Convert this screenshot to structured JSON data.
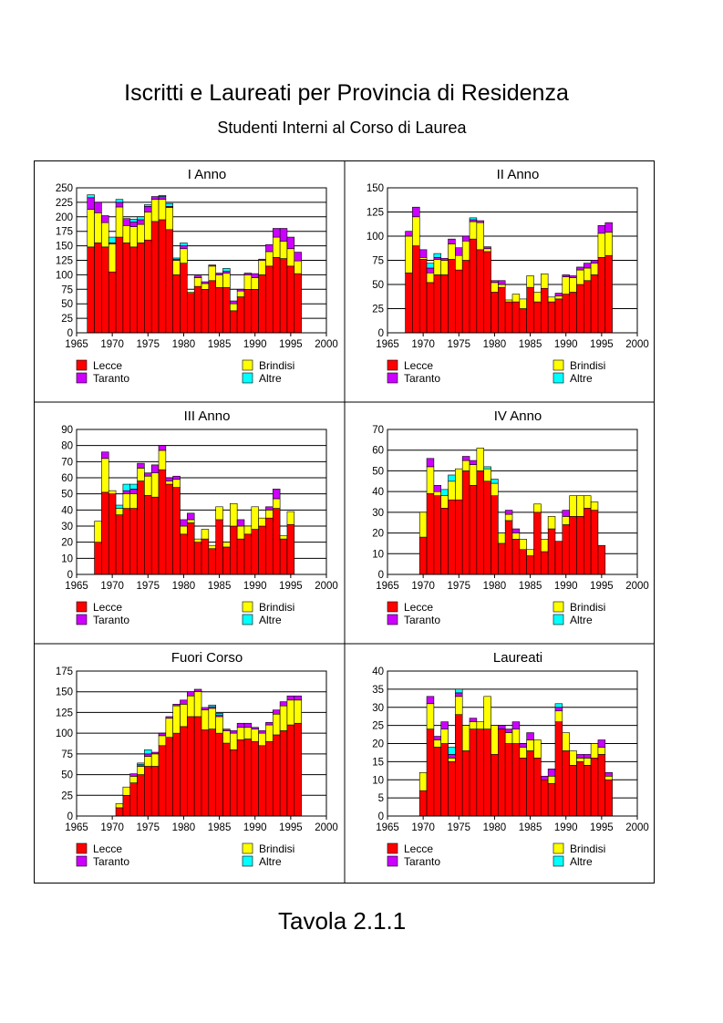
{
  "page": {
    "title": "Iscritti e Laureati per Provincia di Residenza",
    "subtitle": "Studenti Interni al Corso di Laurea",
    "footer": "Tavola 2.1.1"
  },
  "colors": {
    "Lecce": "#ff0000",
    "Brindisi": "#ffff00",
    "Taranto": "#cc00ff",
    "Altre": "#00ffff",
    "plot_bg": "#ffffff"
  },
  "chart_data": [
    {
      "type": "bar",
      "stacked": true,
      "title": "I Anno",
      "xlim": [
        1965,
        2000
      ],
      "x_ticks": [
        1965,
        1970,
        1975,
        1980,
        1985,
        1990,
        1995,
        2000
      ],
      "ylim": [
        0,
        250
      ],
      "y_ticks": [
        0,
        25,
        50,
        75,
        100,
        125,
        150,
        175,
        200,
        225,
        250
      ],
      "grid": "horizontal",
      "legend": [
        "Lecce",
        "Brindisi",
        "Taranto",
        "Altre"
      ],
      "x": [
        1967,
        1968,
        1969,
        1970,
        1971,
        1972,
        1973,
        1974,
        1975,
        1976,
        1977,
        1978,
        1979,
        1980,
        1981,
        1982,
        1983,
        1984,
        1985,
        1986,
        1987,
        1988,
        1989,
        1990,
        1991,
        1992,
        1993,
        1994,
        1995,
        1996
      ],
      "series": [
        {
          "name": "Lecce",
          "values": [
            148,
            155,
            148,
            105,
            165,
            155,
            148,
            155,
            160,
            192,
            195,
            178,
            100,
            120,
            68,
            80,
            75,
            90,
            78,
            78,
            38,
            62,
            75,
            75,
            100,
            115,
            130,
            128,
            115,
            102
          ]
        },
        {
          "name": "Brindisi",
          "values": [
            65,
            52,
            42,
            48,
            52,
            30,
            35,
            32,
            48,
            38,
            35,
            38,
            25,
            25,
            2,
            15,
            10,
            25,
            22,
            25,
            12,
            10,
            25,
            20,
            25,
            25,
            35,
            30,
            30,
            22
          ]
        },
        {
          "name": "Taranto",
          "values": [
            20,
            18,
            12,
            2,
            8,
            12,
            8,
            8,
            10,
            5,
            5,
            2,
            2,
            5,
            0,
            3,
            3,
            2,
            3,
            3,
            5,
            3,
            3,
            7,
            2,
            12,
            15,
            22,
            20,
            15
          ]
        },
        {
          "name": "Altre",
          "values": [
            5,
            0,
            0,
            10,
            5,
            0,
            5,
            5,
            3,
            0,
            2,
            5,
            2,
            5,
            0,
            0,
            0,
            0,
            0,
            5,
            0,
            0,
            0,
            0,
            0,
            0,
            0,
            0,
            0,
            0
          ]
        }
      ]
    },
    {
      "type": "bar",
      "stacked": true,
      "title": "II Anno",
      "xlim": [
        1965,
        2000
      ],
      "x_ticks": [
        1965,
        1970,
        1975,
        1980,
        1985,
        1990,
        1995,
        2000
      ],
      "ylim": [
        0,
        150
      ],
      "y_ticks": [
        0,
        25,
        50,
        75,
        100,
        125,
        150
      ],
      "grid": "horizontal",
      "legend": [
        "Lecce",
        "Brindisi",
        "Taranto",
        "Altre"
      ],
      "x": [
        1968,
        1969,
        1970,
        1971,
        1972,
        1973,
        1974,
        1975,
        1976,
        1977,
        1978,
        1979,
        1980,
        1981,
        1982,
        1983,
        1984,
        1985,
        1986,
        1987,
        1988,
        1989,
        1990,
        1991,
        1992,
        1993,
        1994,
        1995,
        1996
      ],
      "series": [
        {
          "name": "Lecce",
          "values": [
            62,
            90,
            76,
            52,
            60,
            60,
            76,
            65,
            75,
            97,
            86,
            84,
            42,
            47,
            32,
            32,
            25,
            47,
            32,
            46,
            32,
            35,
            40,
            42,
            50,
            54,
            60,
            78,
            80
          ]
        },
        {
          "name": "Brindisi",
          "values": [
            38,
            30,
            2,
            10,
            16,
            15,
            16,
            15,
            20,
            18,
            28,
            3,
            10,
            3,
            2,
            8,
            10,
            12,
            10,
            15,
            5,
            3,
            18,
            15,
            15,
            13,
            12,
            25,
            24
          ]
        },
        {
          "name": "Taranto",
          "values": [
            5,
            10,
            8,
            5,
            2,
            2,
            5,
            8,
            5,
            2,
            2,
            2,
            2,
            4,
            0,
            0,
            0,
            0,
            0,
            0,
            0,
            3,
            2,
            2,
            3,
            5,
            3,
            8,
            10
          ]
        },
        {
          "name": "Altre",
          "values": [
            0,
            0,
            0,
            5,
            4,
            0,
            0,
            0,
            0,
            2,
            0,
            0,
            0,
            0,
            0,
            0,
            0,
            0,
            0,
            0,
            0,
            0,
            0,
            0,
            0,
            0,
            0,
            0,
            0
          ]
        }
      ]
    },
    {
      "type": "bar",
      "stacked": true,
      "title": "III Anno",
      "xlim": [
        1965,
        2000
      ],
      "x_ticks": [
        1965,
        1970,
        1975,
        1980,
        1985,
        1990,
        1995,
        2000
      ],
      "ylim": [
        0,
        90
      ],
      "y_ticks": [
        0,
        10,
        20,
        30,
        40,
        50,
        60,
        70,
        80,
        90
      ],
      "grid": "horizontal",
      "legend": [
        "Lecce",
        "Brindisi",
        "Taranto",
        "Altre"
      ],
      "x": [
        1968,
        1969,
        1970,
        1971,
        1972,
        1973,
        1974,
        1975,
        1976,
        1977,
        1978,
        1979,
        1980,
        1981,
        1982,
        1983,
        1984,
        1985,
        1986,
        1987,
        1988,
        1989,
        1990,
        1991,
        1992,
        1993,
        1994,
        1995,
        1996
      ],
      "series": [
        {
          "name": "Lecce",
          "values": [
            20,
            51,
            50,
            37,
            41,
            41,
            58,
            49,
            48,
            65,
            56,
            54,
            25,
            32,
            20,
            22,
            16,
            34,
            17,
            30,
            22,
            25,
            28,
            30,
            35,
            41,
            22,
            31,
            0
          ]
        },
        {
          "name": "Brindisi",
          "values": [
            13,
            21,
            2,
            4,
            9,
            9,
            8,
            12,
            15,
            12,
            2,
            5,
            5,
            2,
            2,
            6,
            2,
            8,
            3,
            14,
            8,
            5,
            14,
            5,
            5,
            6,
            2,
            8,
            0
          ]
        },
        {
          "name": "Taranto",
          "values": [
            0,
            4,
            0,
            0,
            2,
            3,
            3,
            2,
            5,
            3,
            2,
            2,
            4,
            4,
            0,
            0,
            0,
            0,
            0,
            0,
            4,
            0,
            0,
            0,
            2,
            6,
            0,
            0,
            0
          ]
        },
        {
          "name": "Altre",
          "values": [
            0,
            0,
            0,
            2,
            4,
            3,
            0,
            0,
            0,
            0,
            0,
            0,
            0,
            0,
            0,
            0,
            0,
            0,
            0,
            0,
            0,
            0,
            0,
            0,
            0,
            0,
            0,
            0,
            0
          ]
        }
      ]
    },
    {
      "type": "bar",
      "stacked": true,
      "title": "IV Anno",
      "xlim": [
        1965,
        2000
      ],
      "x_ticks": [
        1965,
        1970,
        1975,
        1980,
        1985,
        1990,
        1995,
        2000
      ],
      "ylim": [
        0,
        70
      ],
      "y_ticks": [
        0,
        10,
        20,
        30,
        40,
        50,
        60,
        70
      ],
      "grid": "horizontal",
      "legend": [
        "Lecce",
        "Brindisi",
        "Taranto",
        "Altre"
      ],
      "x": [
        1970,
        1971,
        1972,
        1973,
        1974,
        1975,
        1976,
        1977,
        1978,
        1979,
        1980,
        1981,
        1982,
        1983,
        1984,
        1985,
        1986,
        1987,
        1988,
        1989,
        1990,
        1991,
        1992,
        1993,
        1994,
        1995,
        1996
      ],
      "series": [
        {
          "name": "Lecce",
          "values": [
            18,
            39,
            38,
            32,
            36,
            36,
            50,
            43,
            50,
            45,
            38,
            15,
            26,
            17,
            12,
            9,
            30,
            11,
            22,
            16,
            24,
            28,
            28,
            32,
            31,
            14,
            0
          ]
        },
        {
          "name": "Brindisi",
          "values": [
            12,
            13,
            2,
            6,
            9,
            15,
            5,
            10,
            11,
            6,
            6,
            5,
            3,
            3,
            5,
            3,
            4,
            6,
            6,
            0,
            4,
            10,
            10,
            6,
            4,
            0,
            0
          ]
        },
        {
          "name": "Taranto",
          "values": [
            0,
            4,
            3,
            0,
            0,
            0,
            2,
            2,
            0,
            0,
            0,
            0,
            2,
            2,
            0,
            0,
            0,
            0,
            0,
            0,
            3,
            0,
            0,
            0,
            0,
            0,
            0
          ]
        },
        {
          "name": "Altre",
          "values": [
            0,
            0,
            0,
            3,
            3,
            0,
            0,
            0,
            0,
            1,
            2,
            0,
            0,
            0,
            0,
            0,
            0,
            0,
            0,
            0,
            0,
            0,
            0,
            0,
            0,
            0,
            0
          ]
        }
      ]
    },
    {
      "type": "bar",
      "stacked": true,
      "title": "Fuori Corso",
      "xlim": [
        1965,
        2000
      ],
      "x_ticks": [
        1965,
        1970,
        1975,
        1980,
        1985,
        1990,
        1995,
        2000
      ],
      "ylim": [
        0,
        175
      ],
      "y_ticks": [
        0,
        25,
        50,
        75,
        100,
        125,
        150,
        175
      ],
      "grid": "horizontal",
      "legend": [
        "Lecce",
        "Brindisi",
        "Taranto",
        "Altre"
      ],
      "x": [
        1971,
        1972,
        1973,
        1974,
        1975,
        1976,
        1977,
        1978,
        1979,
        1980,
        1981,
        1982,
        1983,
        1984,
        1985,
        1986,
        1987,
        1988,
        1989,
        1990,
        1991,
        1992,
        1993,
        1994,
        1995,
        1996
      ],
      "series": [
        {
          "name": "Lecce",
          "values": [
            10,
            25,
            40,
            50,
            60,
            60,
            85,
            95,
            100,
            108,
            120,
            120,
            104,
            105,
            100,
            88,
            80,
            92,
            93,
            90,
            85,
            90,
            98,
            103,
            110,
            112
          ]
        },
        {
          "name": "Brindisi",
          "values": [
            5,
            10,
            8,
            10,
            12,
            15,
            12,
            23,
            33,
            27,
            25,
            30,
            24,
            25,
            20,
            15,
            20,
            15,
            14,
            15,
            15,
            20,
            25,
            30,
            30,
            28
          ]
        },
        {
          "name": "Taranto",
          "values": [
            0,
            0,
            3,
            2,
            3,
            2,
            3,
            2,
            2,
            5,
            5,
            3,
            3,
            2,
            2,
            2,
            3,
            5,
            5,
            2,
            3,
            3,
            5,
            5,
            5,
            5
          ]
        },
        {
          "name": "Altre",
          "values": [
            0,
            0,
            0,
            2,
            5,
            0,
            0,
            0,
            0,
            0,
            0,
            0,
            0,
            2,
            2,
            0,
            0,
            0,
            0,
            0,
            0,
            0,
            0,
            0,
            0,
            0
          ]
        }
      ]
    },
    {
      "type": "bar",
      "stacked": true,
      "title": "Laureati",
      "xlim": [
        1965,
        2000
      ],
      "x_ticks": [
        1965,
        1970,
        1975,
        1980,
        1985,
        1990,
        1995,
        2000
      ],
      "ylim": [
        0,
        40
      ],
      "y_ticks": [
        0,
        5,
        10,
        15,
        20,
        25,
        30,
        35,
        40
      ],
      "grid": "horizontal",
      "legend": [
        "Lecce",
        "Brindisi",
        "Taranto",
        "Altre"
      ],
      "x": [
        1970,
        1971,
        1972,
        1973,
        1974,
        1975,
        1976,
        1977,
        1978,
        1979,
        1980,
        1981,
        1982,
        1983,
        1984,
        1985,
        1986,
        1987,
        1988,
        1989,
        1990,
        1991,
        1992,
        1993,
        1994,
        1995,
        1996
      ],
      "series": [
        {
          "name": "Lecce",
          "values": [
            7,
            24,
            19,
            20,
            15,
            28,
            18,
            24,
            24,
            24,
            17,
            24,
            20,
            20,
            16,
            18,
            16,
            10,
            9,
            26,
            18,
            14,
            15,
            14,
            16,
            17,
            10
          ]
        },
        {
          "name": "Brindisi",
          "values": [
            5,
            7,
            2,
            4,
            1,
            5,
            7,
            2,
            2,
            9,
            8,
            0,
            3,
            4,
            3,
            3,
            5,
            0,
            2,
            3,
            5,
            4,
            1,
            2,
            4,
            2,
            1
          ]
        },
        {
          "name": "Taranto",
          "values": [
            0,
            2,
            1,
            2,
            1,
            1,
            0,
            1,
            0,
            0,
            0,
            1,
            1,
            2,
            1,
            2,
            0,
            1,
            2,
            1,
            0,
            0,
            1,
            1,
            0,
            2,
            1
          ]
        },
        {
          "name": "Altre",
          "values": [
            0,
            0,
            0,
            0,
            2,
            1,
            0,
            0,
            0,
            0,
            0,
            0,
            0,
            0,
            0,
            0,
            0,
            0,
            0,
            1,
            0,
            0,
            0,
            0,
            0,
            0,
            0
          ]
        }
      ]
    }
  ]
}
